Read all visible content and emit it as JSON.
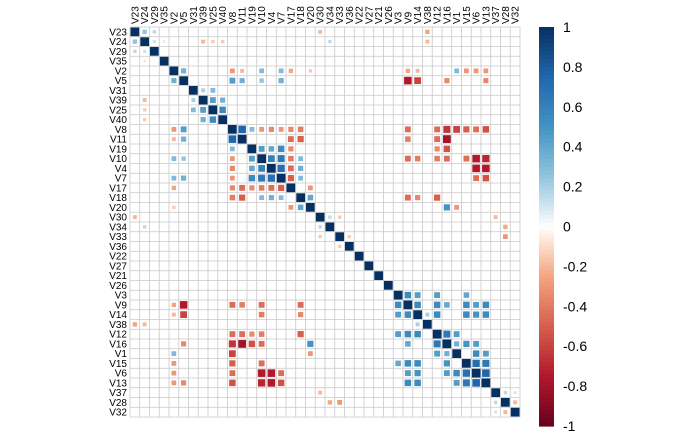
{
  "chart_data": {
    "type": "heatmap",
    "subtype": "correlation-matrix",
    "title": "",
    "labels": [
      "V23",
      "V24",
      "V29",
      "V35",
      "V2",
      "V5",
      "V31",
      "V39",
      "V25",
      "V40",
      "V8",
      "V11",
      "V19",
      "V10",
      "V4",
      "V7",
      "V17",
      "V18",
      "V20",
      "V30",
      "V34",
      "V33",
      "V36",
      "V22",
      "V27",
      "V21",
      "V26",
      "V3",
      "V9",
      "V14",
      "V38",
      "V12",
      "V16",
      "V1",
      "V15",
      "V6",
      "V13",
      "V37",
      "V28",
      "V32"
    ],
    "value_range": [
      -1,
      1
    ],
    "cell_marker": "square sized by |r|",
    "grid": true,
    "colorbar": {
      "position": "right",
      "ticks": [
        "-1",
        "-0.8",
        "-0.6",
        "-0.4",
        "-0.2",
        "0",
        "0.2",
        "0.4",
        "0.6",
        "0.8",
        "1"
      ],
      "tick_values": [
        -1,
        -0.8,
        -0.6,
        -0.4,
        -0.2,
        0,
        0.2,
        0.4,
        0.6,
        0.8,
        1
      ],
      "colors": {
        "neg": "#67001F",
        "mid": "#FFFFFF",
        "pos": "#053061"
      }
    },
    "correlations": [
      {
        "pair": [
          "V24",
          "V23"
        ],
        "r": 0.25
      },
      {
        "pair": [
          "V29",
          "V23"
        ],
        "r": 0.15
      },
      {
        "pair": [
          "V29",
          "V24"
        ],
        "r": 0.12
      },
      {
        "pair": [
          "V35",
          "V24"
        ],
        "r": -0.08
      },
      {
        "pair": [
          "V25",
          "V24"
        ],
        "r": -0.15
      },
      {
        "pair": [
          "V39",
          "V24"
        ],
        "r": -0.2
      },
      {
        "pair": [
          "V40",
          "V24"
        ],
        "r": -0.15
      },
      {
        "pair": [
          "V30",
          "V23"
        ],
        "r": -0.2
      },
      {
        "pair": [
          "V34",
          "V24"
        ],
        "r": 0.15
      },
      {
        "pair": [
          "V38",
          "V23"
        ],
        "r": -0.25
      },
      {
        "pair": [
          "V38",
          "V24"
        ],
        "r": -0.2
      },
      {
        "pair": [
          "V5",
          "V2"
        ],
        "r": 0.35
      },
      {
        "pair": [
          "V8",
          "V2"
        ],
        "r": -0.3
      },
      {
        "pair": [
          "V8",
          "V5"
        ],
        "r": 0.45
      },
      {
        "pair": [
          "V11",
          "V2"
        ],
        "r": -0.2
      },
      {
        "pair": [
          "V11",
          "V5"
        ],
        "r": 0.35
      },
      {
        "pair": [
          "V10",
          "V2"
        ],
        "r": 0.3
      },
      {
        "pair": [
          "V10",
          "V5"
        ],
        "r": 0.25
      },
      {
        "pair": [
          "V7",
          "V2"
        ],
        "r": 0.3
      },
      {
        "pair": [
          "V7",
          "V5"
        ],
        "r": 0.35
      },
      {
        "pair": [
          "V17",
          "V2"
        ],
        "r": -0.25
      },
      {
        "pair": [
          "V20",
          "V2"
        ],
        "r": -0.15
      },
      {
        "pair": [
          "V9",
          "V5"
        ],
        "r": -0.75
      },
      {
        "pair": [
          "V9",
          "V2"
        ],
        "r": -0.25
      },
      {
        "pair": [
          "V14",
          "V5"
        ],
        "r": -0.6
      },
      {
        "pair": [
          "V14",
          "V2"
        ],
        "r": -0.2
      },
      {
        "pair": [
          "V16",
          "V5"
        ],
        "r": -0.35
      },
      {
        "pair": [
          "V1",
          "V2"
        ],
        "r": 0.3
      },
      {
        "pair": [
          "V15",
          "V2"
        ],
        "r": -0.3
      },
      {
        "pair": [
          "V6",
          "V2"
        ],
        "r": -0.3
      },
      {
        "pair": [
          "V13",
          "V2"
        ],
        "r": -0.3
      },
      {
        "pair": [
          "V13",
          "V5"
        ],
        "r": -0.35
      },
      {
        "pair": [
          "V39",
          "V31"
        ],
        "r": 0.2
      },
      {
        "pair": [
          "V25",
          "V39"
        ],
        "r": 0.45
      },
      {
        "pair": [
          "V40",
          "V39"
        ],
        "r": 0.35
      },
      {
        "pair": [
          "V40",
          "V25"
        ],
        "r": 0.55
      },
      {
        "pair": [
          "V25",
          "V31"
        ],
        "r": 0.3
      },
      {
        "pair": [
          "V11",
          "V8"
        ],
        "r": 0.75
      },
      {
        "pair": [
          "V19",
          "V8"
        ],
        "r": 0.3
      },
      {
        "pair": [
          "V10",
          "V8"
        ],
        "r": -0.3
      },
      {
        "pair": [
          "V4",
          "V8"
        ],
        "r": -0.35
      },
      {
        "pair": [
          "V7",
          "V8"
        ],
        "r": -0.3
      },
      {
        "pair": [
          "V17",
          "V8"
        ],
        "r": -0.35
      },
      {
        "pair": [
          "V18",
          "V8"
        ],
        "r": -0.4
      },
      {
        "pair": [
          "V17",
          "V11"
        ],
        "r": -0.45
      },
      {
        "pair": [
          "V18",
          "V11"
        ],
        "r": -0.5
      },
      {
        "pair": [
          "V10",
          "V19"
        ],
        "r": 0.45
      },
      {
        "pair": [
          "V4",
          "V19"
        ],
        "r": 0.4
      },
      {
        "pair": [
          "V7",
          "V19"
        ],
        "r": 0.55
      },
      {
        "pair": [
          "V4",
          "V10"
        ],
        "r": 0.6
      },
      {
        "pair": [
          "V7",
          "V10"
        ],
        "r": 0.65
      },
      {
        "pair": [
          "V7",
          "V4"
        ],
        "r": 0.7
      },
      {
        "pair": [
          "V17",
          "V19"
        ],
        "r": -0.35
      },
      {
        "pair": [
          "V17",
          "V10"
        ],
        "r": -0.4
      },
      {
        "pair": [
          "V17",
          "V4"
        ],
        "r": -0.45
      },
      {
        "pair": [
          "V17",
          "V7"
        ],
        "r": -0.5
      },
      {
        "pair": [
          "V18",
          "V10"
        ],
        "r": 0.3
      },
      {
        "pair": [
          "V18",
          "V4"
        ],
        "r": 0.35
      },
      {
        "pair": [
          "V18",
          "V7"
        ],
        "r": 0.3
      },
      {
        "pair": [
          "V20",
          "V17"
        ],
        "r": -0.3
      },
      {
        "pair": [
          "V20",
          "V18"
        ],
        "r": 0.4
      },
      {
        "pair": [
          "V9",
          "V8"
        ],
        "r": -0.45
      },
      {
        "pair": [
          "V9",
          "V11"
        ],
        "r": -0.4
      },
      {
        "pair": [
          "V12",
          "V8"
        ],
        "r": -0.45
      },
      {
        "pair": [
          "V12",
          "V11"
        ],
        "r": -0.45
      },
      {
        "pair": [
          "V16",
          "V8"
        ],
        "r": -0.65
      },
      {
        "pair": [
          "V16",
          "V11"
        ],
        "r": -0.8
      },
      {
        "pair": [
          "V1",
          "V8"
        ],
        "r": -0.6
      },
      {
        "pair": [
          "V15",
          "V8"
        ],
        "r": -0.5
      },
      {
        "pair": [
          "V6",
          "V8"
        ],
        "r": -0.45
      },
      {
        "pair": [
          "V13",
          "V8"
        ],
        "r": -0.55
      },
      {
        "pair": [
          "V9",
          "V10"
        ],
        "r": -0.45
      },
      {
        "pair": [
          "V14",
          "V10"
        ],
        "r": -0.4
      },
      {
        "pair": [
          "V12",
          "V10"
        ],
        "r": -0.4
      },
      {
        "pair": [
          "V16",
          "V10"
        ],
        "r": -0.45
      },
      {
        "pair": [
          "V15",
          "V10"
        ],
        "r": -0.45
      },
      {
        "pair": [
          "V6",
          "V10"
        ],
        "r": -0.75
      },
      {
        "pair": [
          "V13",
          "V10"
        ],
        "r": -0.7
      },
      {
        "pair": [
          "V6",
          "V4"
        ],
        "r": -0.75
      },
      {
        "pair": [
          "V13",
          "V4"
        ],
        "r": -0.75
      },
      {
        "pair": [
          "V6",
          "V7"
        ],
        "r": -0.45
      },
      {
        "pair": [
          "V13",
          "V7"
        ],
        "r": -0.55
      },
      {
        "pair": [
          "V12",
          "V19"
        ],
        "r": -0.35
      },
      {
        "pair": [
          "V16",
          "V19"
        ],
        "r": -0.55
      },
      {
        "pair": [
          "V9",
          "V18"
        ],
        "r": -0.45
      },
      {
        "pair": [
          "V14",
          "V18"
        ],
        "r": -0.35
      },
      {
        "pair": [
          "V12",
          "V18"
        ],
        "r": -0.5
      },
      {
        "pair": [
          "V16",
          "V20"
        ],
        "r": 0.5
      },
      {
        "pair": [
          "V1",
          "V20"
        ],
        "r": -0.3
      },
      {
        "pair": [
          "V34",
          "V30"
        ],
        "r": 0.15
      },
      {
        "pair": [
          "V33",
          "V30"
        ],
        "r": -0.15
      },
      {
        "pair": [
          "V36",
          "V33"
        ],
        "r": -0.15
      },
      {
        "pair": [
          "V28",
          "V33"
        ],
        "r": -0.3
      },
      {
        "pair": [
          "V28",
          "V34"
        ],
        "r": -0.25
      },
      {
        "pair": [
          "V37",
          "V30"
        ],
        "r": -0.2
      },
      {
        "pair": [
          "V9",
          "V3"
        ],
        "r": 0.55
      },
      {
        "pair": [
          "V14",
          "V3"
        ],
        "r": 0.45
      },
      {
        "pair": [
          "V14",
          "V9"
        ],
        "r": 0.55
      },
      {
        "pair": [
          "V12",
          "V3"
        ],
        "r": 0.45
      },
      {
        "pair": [
          "V12",
          "V9"
        ],
        "r": 0.55
      },
      {
        "pair": [
          "V12",
          "V14"
        ],
        "r": 0.55
      },
      {
        "pair": [
          "V16",
          "V9"
        ],
        "r": 0.4
      },
      {
        "pair": [
          "V16",
          "V12"
        ],
        "r": 0.65
      },
      {
        "pair": [
          "V1",
          "V12"
        ],
        "r": 0.45
      },
      {
        "pair": [
          "V1",
          "V16"
        ],
        "r": 0.35
      },
      {
        "pair": [
          "V15",
          "V3"
        ],
        "r": 0.4
      },
      {
        "pair": [
          "V15",
          "V9"
        ],
        "r": 0.55
      },
      {
        "pair": [
          "V15",
          "V14"
        ],
        "r": 0.55
      },
      {
        "pair": [
          "V15",
          "V16"
        ],
        "r": 0.5
      },
      {
        "pair": [
          "V6",
          "V9"
        ],
        "r": 0.45
      },
      {
        "pair": [
          "V6",
          "V14"
        ],
        "r": 0.5
      },
      {
        "pair": [
          "V6",
          "V16"
        ],
        "r": 0.45
      },
      {
        "pair": [
          "V6",
          "V1"
        ],
        "r": 0.55
      },
      {
        "pair": [
          "V6",
          "V15"
        ],
        "r": 0.7
      },
      {
        "pair": [
          "V13",
          "V9"
        ],
        "r": 0.55
      },
      {
        "pair": [
          "V13",
          "V14"
        ],
        "r": 0.55
      },
      {
        "pair": [
          "V13",
          "V1"
        ],
        "r": 0.45
      },
      {
        "pair": [
          "V13",
          "V15"
        ],
        "r": 0.65
      },
      {
        "pair": [
          "V13",
          "V6"
        ],
        "r": 0.75
      },
      {
        "pair": [
          "V38",
          "V14"
        ],
        "r": 0.2
      },
      {
        "pair": [
          "V28",
          "V37"
        ],
        "r": 0.15
      },
      {
        "pair": [
          "V32",
          "V28"
        ],
        "r": -0.2
      },
      {
        "pair": [
          "V32",
          "V37"
        ],
        "r": 0.1
      }
    ]
  }
}
